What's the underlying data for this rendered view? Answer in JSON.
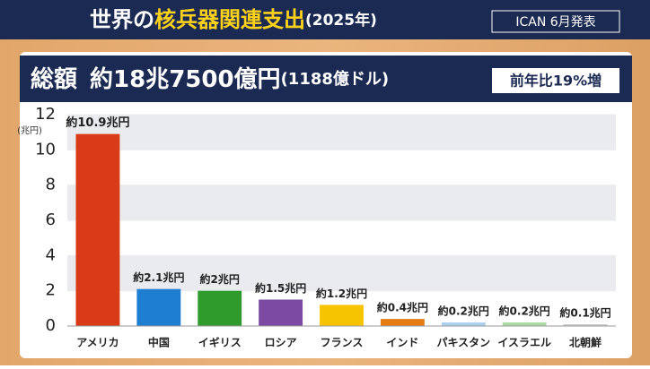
{
  "header": {
    "title_prefix": "世界の",
    "title_highlight": "核兵器関連支出",
    "title_suffix": "(2025年)",
    "source": "ICAN 6月発表",
    "total_label": "総額",
    "total_amount": "約18兆7500億円",
    "total_usd": "(1188億ドル)",
    "change": "前年比19%増"
  },
  "chart_data": {
    "type": "bar",
    "y_label": "(兆円)",
    "categories": [
      "アメリカ",
      "中国",
      "イギリス",
      "ロシア",
      "フランス",
      "インド",
      "パキスタン",
      "イスラエル",
      "北朝鮮"
    ],
    "values": [
      10.9,
      2.1,
      2,
      1.5,
      1.2,
      0.4,
      0.2,
      0.2,
      0.1
    ],
    "value_labels": [
      "約10.9兆円",
      "約2.1兆円",
      "約2兆円",
      "約1.5兆円",
      "約1.2兆円",
      "約0.4兆円",
      "約0.2兆円",
      "約0.2兆円",
      "約0.1兆円"
    ],
    "colors": [
      "#d93a17",
      "#1e7fd0",
      "#2f9b2c",
      "#7c4aa3",
      "#f6c400",
      "#e47a12",
      "#a9cfee",
      "#a9dca3",
      "#c9c9c9"
    ],
    "ylim": [
      0,
      12
    ],
    "yticks": [
      0,
      2,
      4,
      6,
      8,
      10,
      12
    ],
    "grid": true
  }
}
